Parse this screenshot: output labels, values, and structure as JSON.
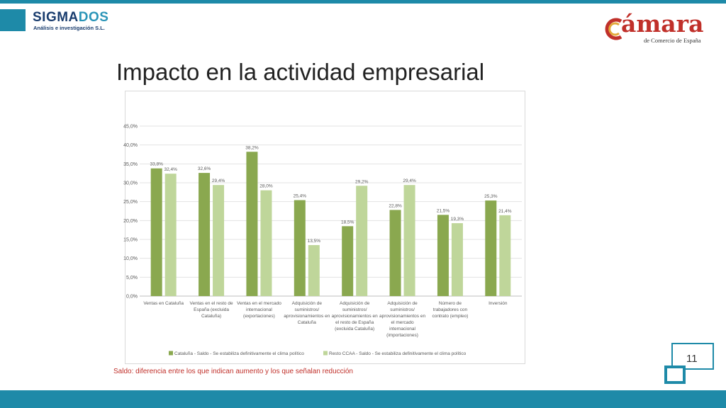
{
  "header": {
    "logo_left": {
      "name_main": "SIGMA",
      "name_accent": "DOS",
      "subtitle": "Análisis e investigación S.L."
    },
    "logo_right": {
      "name": "ámara",
      "tagline": "de Comercio de España"
    }
  },
  "slide": {
    "title": "Impacto en la actividad empresarial",
    "footnote": "Saldo: diferencia entre los que indican aumento y los que señalan reducción",
    "page_number": "11"
  },
  "colors": {
    "brand_teal": "#1e8aa8",
    "series_dark": "#8aa84f",
    "series_light": "#bfd69a",
    "footnote_red": "#c0302a"
  },
  "chart_data": {
    "type": "bar",
    "categories": [
      [
        "Ventas en Cataluña"
      ],
      [
        "Ventas en el resto de",
        "España (excluida",
        "Cataluña)"
      ],
      [
        "Ventas en el mercado",
        "internacional",
        "(exportaciones)"
      ],
      [
        "Adquisición de",
        "suministros/",
        "aprovisionamientos en",
        "Cataluña"
      ],
      [
        "Adquisición de",
        "suministros/",
        "aprovisionamientos en",
        "el resto de España",
        "(excluida Cataluña)"
      ],
      [
        "Adquisición de",
        "suministros/",
        "aprovisionamientos en",
        "el mercado",
        "internacional",
        "(importaciones)"
      ],
      [
        "Número de",
        "trabajadores con",
        "contrato (empleo)"
      ],
      [
        "Inversión"
      ]
    ],
    "series": [
      {
        "name": "Cataluña - Saldo - Se estabiliza definitivamente el clima político",
        "values": [
          33.8,
          32.6,
          38.2,
          25.4,
          18.5,
          22.8,
          21.5,
          25.3
        ],
        "labels": [
          "33,8%",
          "32,6%",
          "38,2%",
          "25,4%",
          "18,5%",
          "22,8%",
          "21,5%",
          "25,3%"
        ]
      },
      {
        "name": "Resto CCAA - Saldo - Se estabiliza definitivamente el clima político",
        "values": [
          32.4,
          29.4,
          28.0,
          13.5,
          29.2,
          29.4,
          19.3,
          21.4
        ],
        "labels": [
          "32,4%",
          "29,4%",
          "28,0%",
          "13,5%",
          "29,2%",
          "29,4%",
          "19,3%",
          "21,4%"
        ]
      }
    ],
    "y_ticks": [
      0,
      5,
      10,
      15,
      20,
      25,
      30,
      35,
      40,
      45
    ],
    "y_tick_labels": [
      "0,0%",
      "5,0%",
      "10,0%",
      "15,0%",
      "20,0%",
      "25,0%",
      "30,0%",
      "35,0%",
      "40,0%",
      "45,0%"
    ],
    "ylim": [
      0,
      45
    ],
    "grid": true,
    "legend_position": "bottom"
  }
}
